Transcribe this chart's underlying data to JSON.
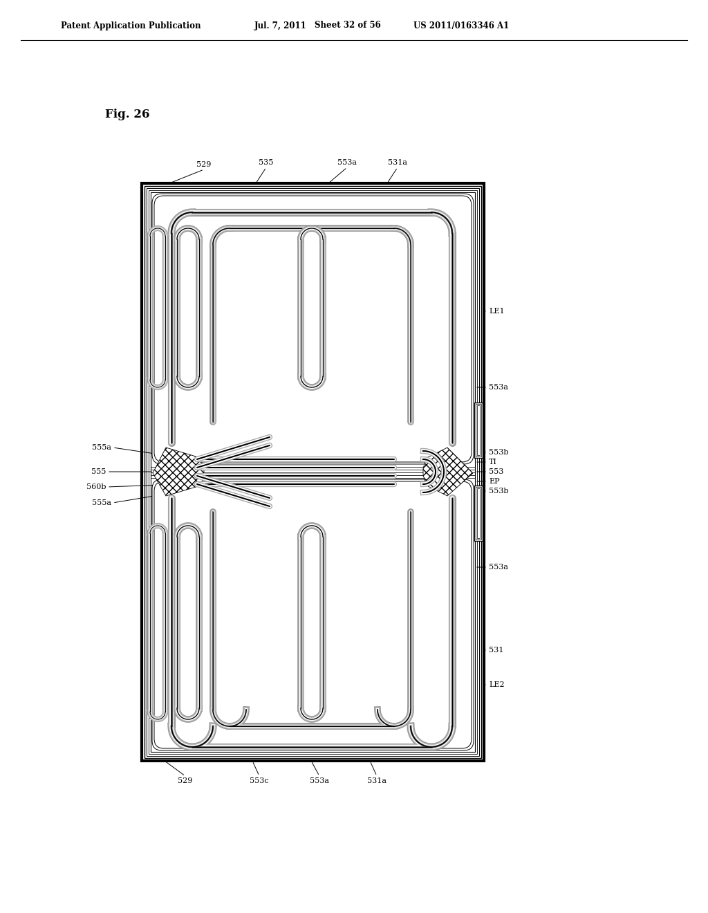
{
  "title_line1": "Patent Application Publication",
  "title_date": "Jul. 7, 2011",
  "title_sheet": "Sheet 32 of 56",
  "title_patent": "US 2011/0163346 A1",
  "fig_label": "Fig. 26",
  "background_color": "#ffffff",
  "line_color": "#000000",
  "labels_top": [
    "529",
    "535",
    "553a",
    "531a"
  ],
  "labels_bottom": [
    "529",
    "553c",
    "553a",
    "531a"
  ],
  "labels_left": [
    "555a",
    "555",
    "560b",
    "555a"
  ],
  "labels_right": [
    "LE1",
    "553a",
    "553b",
    "TI",
    "553",
    "EP",
    "553b",
    "553a",
    "531",
    "LE2"
  ],
  "device": {
    "L": 205,
    "R": 700,
    "B": 220,
    "T": 1055,
    "MID": 638
  }
}
